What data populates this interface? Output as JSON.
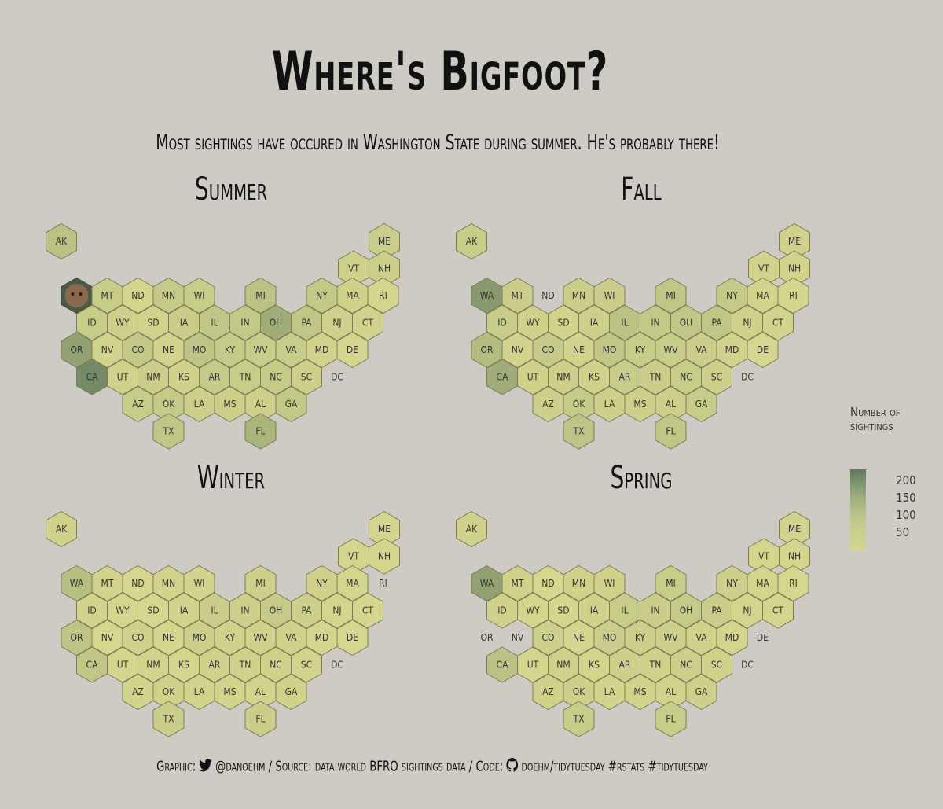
{
  "title": "Where's Bigfoot?",
  "subtitle": "Most sightings have occured in Washington State during summer. He's probably there!",
  "legend": {
    "title_line1": "Number of",
    "title_line2": "sightings",
    "ticks": [
      "200",
      "150",
      "100",
      "50"
    ]
  },
  "caption": {
    "graphic_label": "Graphic:",
    "twitter_handle": "@danoehm",
    "source_label": "/ Source:",
    "source_text": "data.world BFRO sightings data",
    "code_label": "/ Code:",
    "code_text": "doehm/tidytuesday #rstats #tidytuesday",
    "twitter_icon": "twitter-bird-icon",
    "github_icon": "github-octocat-icon"
  },
  "colors": {
    "background": "#cdcbc4",
    "low": "#d7d88f",
    "high": "#5a765b",
    "hex_border": "#7f7d58"
  },
  "chart_data": {
    "type": "heatmap",
    "chart_style": "hex tile map of US states, small multiples by season",
    "value_range": [
      0,
      250
    ],
    "panels": [
      {
        "season": "Summer",
        "highlight": {
          "state": "WA",
          "shown_as": "bigfoot-photo"
        },
        "values": {
          "AK": 55,
          "ME": 25,
          "VT": 18,
          "NH": 22,
          "WA": 250,
          "MT": 30,
          "ND": 6,
          "MN": 35,
          "WI": 30,
          "MI": 55,
          "NY": 40,
          "MA": 15,
          "RI": 5,
          "ID": 30,
          "WY": 20,
          "SD": 12,
          "IA": 28,
          "IL": 45,
          "IN": 40,
          "OH": 110,
          "PA": 45,
          "NJ": 18,
          "CT": 12,
          "OR": 140,
          "NV": 10,
          "CO": 40,
          "NE": 10,
          "MO": 50,
          "KY": 35,
          "WV": 30,
          "VA": 30,
          "MD": 12,
          "DE": 5,
          "CA": 200,
          "UT": 15,
          "NM": 25,
          "KS": 15,
          "AR": 35,
          "TN": 30,
          "NC": 35,
          "SC": 20,
          "DC": 0,
          "AZ": 30,
          "OK": 35,
          "LA": 20,
          "MS": 22,
          "AL": 20,
          "GA": 40,
          "TX": 45,
          "FL": 90
        }
      },
      {
        "season": "Fall",
        "values": {
          "AK": 30,
          "ME": 15,
          "VT": 10,
          "NH": 10,
          "WA": 160,
          "MT": 25,
          "ND": 0,
          "MN": 25,
          "WI": 25,
          "MI": 45,
          "NY": 35,
          "MA": 10,
          "RI": 5,
          "ID": 30,
          "WY": 15,
          "SD": 10,
          "IA": 20,
          "IL": 55,
          "IN": 40,
          "OH": 45,
          "PA": 45,
          "NJ": 15,
          "CT": 10,
          "OR": 70,
          "NV": 10,
          "CO": 35,
          "NE": 10,
          "MO": 45,
          "KY": 30,
          "WV": 30,
          "VA": 25,
          "MD": 12,
          "DE": 3,
          "CA": 110,
          "UT": 15,
          "NM": 20,
          "KS": 15,
          "AR": 30,
          "TN": 25,
          "NC": 30,
          "SC": 20,
          "DC": 0,
          "AZ": 20,
          "OK": 35,
          "LA": 20,
          "MS": 20,
          "AL": 20,
          "GA": 30,
          "TX": 50,
          "FL": 45
        }
      },
      {
        "season": "Winter",
        "values": {
          "AK": 15,
          "ME": 8,
          "VT": 5,
          "NH": 5,
          "WA": 65,
          "MT": 10,
          "ND": 2,
          "MN": 10,
          "WI": 10,
          "MI": 20,
          "NY": 15,
          "MA": 5,
          "RI": 0,
          "ID": 10,
          "WY": 5,
          "SD": 3,
          "IA": 10,
          "IL": 25,
          "IN": 20,
          "OH": 35,
          "PA": 20,
          "NJ": 8,
          "CT": 5,
          "OR": 50,
          "NV": 3,
          "CO": 15,
          "NE": 5,
          "MO": 20,
          "KY": 15,
          "WV": 15,
          "VA": 15,
          "MD": 5,
          "DE": 2,
          "CA": 45,
          "UT": 5,
          "NM": 10,
          "KS": 5,
          "AR": 15,
          "TN": 15,
          "NC": 15,
          "SC": 10,
          "DC": 0,
          "AZ": 10,
          "OK": 15,
          "LA": 10,
          "MS": 10,
          "AL": 10,
          "GA": 15,
          "TX": 25,
          "FL": 25
        }
      },
      {
        "season": "Spring",
        "values": {
          "AK": 15,
          "ME": 10,
          "VT": 5,
          "NH": 5,
          "WA": 140,
          "MT": 15,
          "ND": 2,
          "MN": 15,
          "WI": 15,
          "MI": 30,
          "NY": 20,
          "MA": 8,
          "RI": 3,
          "ID": 15,
          "WY": 8,
          "SD": 5,
          "IA": 15,
          "IL": 30,
          "IN": 25,
          "OH": 35,
          "PA": 25,
          "NJ": 8,
          "CT": 5,
          "OR": 0,
          "NV": 0,
          "CO": 20,
          "NE": 5,
          "MO": 25,
          "KY": 20,
          "WV": 20,
          "VA": 15,
          "MD": 8,
          "DE": 0,
          "CA": 55,
          "UT": 5,
          "NM": 15,
          "KS": 8,
          "AR": 20,
          "TN": 15,
          "NC": 20,
          "SC": 15,
          "DC": 0,
          "AZ": 15,
          "OK": 20,
          "LA": 10,
          "MS": 12,
          "AL": 12,
          "GA": 20,
          "TX": 30,
          "FL": 30
        }
      }
    ]
  }
}
